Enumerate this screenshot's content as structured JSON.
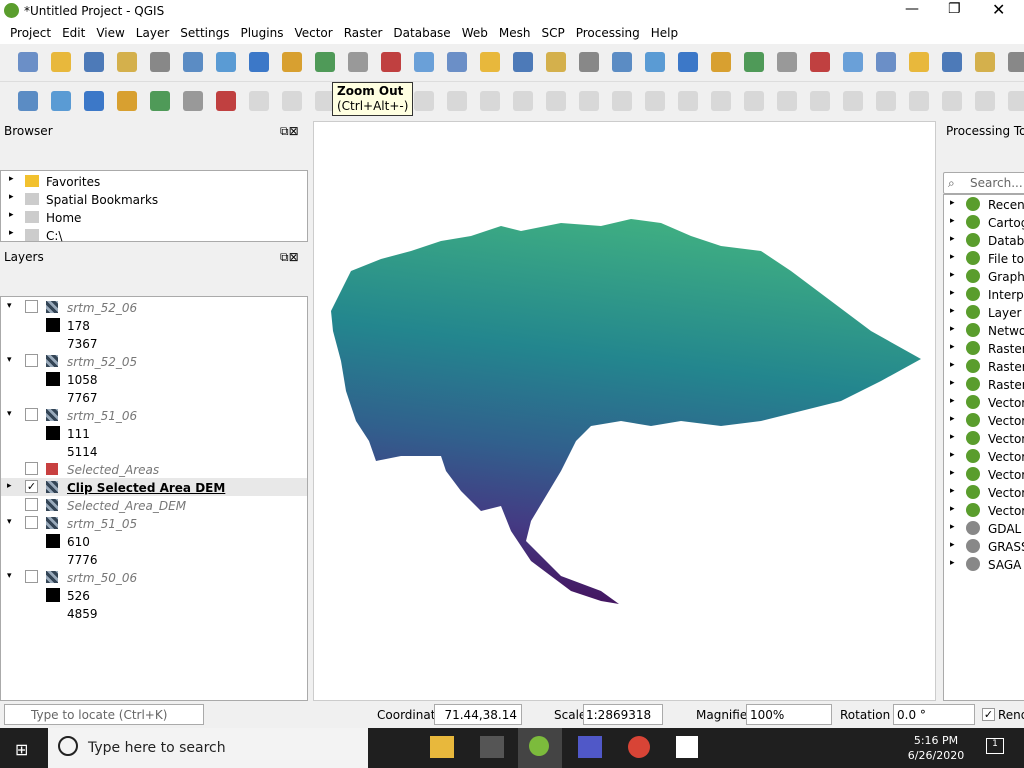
{
  "window": {
    "title": "*Untitled Project - QGIS"
  },
  "menu": [
    "Project",
    "Edit",
    "View",
    "Layer",
    "Settings",
    "Plugins",
    "Vector",
    "Raster",
    "Database",
    "Web",
    "Mesh",
    "SCP",
    "Processing",
    "Help"
  ],
  "tooltip": {
    "title": "Zoom Out",
    "shortcut": "(Ctrl+Alt+-)"
  },
  "browser": {
    "title": "Browser",
    "items": [
      "Favorites",
      "Spatial Bookmarks",
      "Home",
      "C:\\"
    ]
  },
  "layers": {
    "title": "Layers",
    "items": [
      {
        "name": "srtm_52_06",
        "min": 178,
        "max": 7367
      },
      {
        "name": "srtm_52_05",
        "min": 1058,
        "max": 7767
      },
      {
        "name": "srtm_51_06",
        "min": 111,
        "max": 5114
      },
      {
        "name": "Selected_Areas"
      },
      {
        "name": "Clip Selected Area DEM",
        "checked": true
      },
      {
        "name": "Selected_Area_DEM"
      },
      {
        "name": "srtm_51_05",
        "min": 610,
        "max": 7776
      },
      {
        "name": "srtm_50_06",
        "min": 526,
        "max": 4859
      }
    ]
  },
  "processing": {
    "title": "Processing Too",
    "search": "Search...",
    "items": [
      "Recent",
      "Cartog",
      "Databa",
      "File too",
      "Graphi",
      "Interpo",
      "Layer t",
      "Netwo",
      "Raster",
      "Raster",
      "Raster",
      "Vector",
      "Vector",
      "Vector",
      "Vector",
      "Vector",
      "Vector",
      "Vector",
      "GDAL",
      "GRASS",
      "SAGA"
    ]
  },
  "status": {
    "locate": "Type to locate (Ctrl+K)",
    "coordinate_label": "Coordinate",
    "coordinate": "71.44,38.14",
    "scale_label": "Scale",
    "scale": "1:2869318",
    "magnifier_label": "Magnifier",
    "magnifier": "100%",
    "rotation_label": "Rotation",
    "rotation": "0.0 °",
    "render": "Rend"
  },
  "taskbar": {
    "search": "Type here to search",
    "time": "5:16 PM",
    "date": "6/26/2020",
    "badge": "1"
  }
}
